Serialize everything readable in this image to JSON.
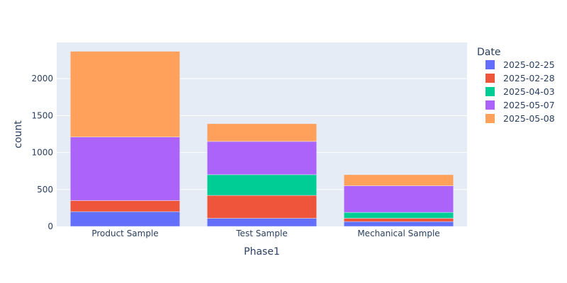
{
  "chart_data": {
    "type": "bar",
    "stacked": true,
    "title": "",
    "xlabel": "Phase1",
    "ylabel": "count",
    "categories": [
      "Product Sample",
      "Test Sample",
      "Mechanical Sample"
    ],
    "ylim": [
      0,
      2490
    ],
    "yticks": [
      0,
      500,
      1000,
      1500,
      2000
    ],
    "ytick_labels": [
      "0",
      "500",
      "1000",
      "1500",
      "2000"
    ],
    "grid": true,
    "legend": {
      "title": "Date",
      "placement": "right"
    },
    "series": [
      {
        "name": "2025-02-25",
        "color": "#636efa",
        "values": [
          200,
          110,
          65
        ]
      },
      {
        "name": "2025-02-28",
        "color": "#ef553b",
        "values": [
          150,
          310,
          45
        ]
      },
      {
        "name": "2025-04-03",
        "color": "#00cc96",
        "values": [
          0,
          280,
          80
        ]
      },
      {
        "name": "2025-05-07",
        "color": "#ab63fa",
        "values": [
          860,
          450,
          360
        ]
      },
      {
        "name": "2025-05-08",
        "color": "#ffa15a",
        "values": [
          1160,
          240,
          150
        ]
      }
    ],
    "plot_background": "#e5ecf6"
  }
}
